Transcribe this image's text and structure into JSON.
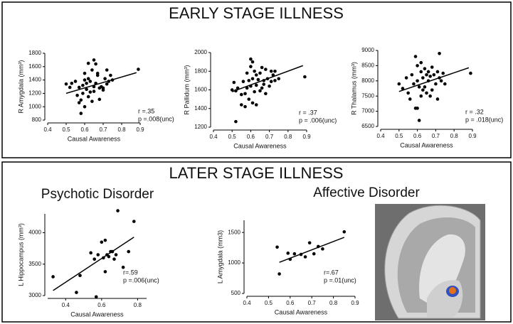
{
  "panels": [
    {
      "title": "EARLY STAGE ILLNESS"
    },
    {
      "title": "LATER STAGE ILLNESS"
    }
  ],
  "chart_data": [
    {
      "type": "scatter",
      "xlabel": "Causal Awareness",
      "ylabel": "R Amygdala (mm³)",
      "x": [
        0.5,
        0.52,
        0.53,
        0.55,
        0.56,
        0.57,
        0.57,
        0.58,
        0.58,
        0.59,
        0.59,
        0.6,
        0.6,
        0.6,
        0.61,
        0.61,
        0.62,
        0.62,
        0.62,
        0.63,
        0.63,
        0.64,
        0.64,
        0.65,
        0.65,
        0.65,
        0.66,
        0.66,
        0.67,
        0.67,
        0.68,
        0.68,
        0.69,
        0.7,
        0.7,
        0.71,
        0.72,
        0.72,
        0.73,
        0.74,
        0.75,
        0.89
      ],
      "values": [
        1340,
        1290,
        1350,
        1380,
        1170,
        1290,
        1060,
        1100,
        900,
        1320,
        1200,
        1500,
        1400,
        1000,
        1350,
        1260,
        1650,
        1420,
        1150,
        1380,
        1220,
        1080,
        1550,
        1700,
        1300,
        1230,
        1640,
        1350,
        1470,
        1500,
        1280,
        1110,
        1300,
        1280,
        1250,
        1420,
        1550,
        1340,
        1380,
        1470,
        1400,
        1560
      ],
      "trend_line": {
        "x": [
          0.5,
          0.88
        ],
        "y": [
          1200,
          1510
        ]
      },
      "annotations": [
        "r =.35",
        "p =.008(unc)"
      ],
      "color": "#000000",
      "xlim": [
        0.4,
        0.9
      ],
      "xticks": [
        0.4,
        0.5,
        0.6,
        0.7,
        0.8,
        0.9
      ],
      "ylim": [
        800,
        1800
      ],
      "yticks": [
        800,
        1000,
        1200,
        1400,
        1600,
        1800
      ]
    },
    {
      "type": "scatter",
      "xlabel": "Causal Awareness",
      "ylabel": "R Pallidum (mm³)",
      "x": [
        0.5,
        0.51,
        0.52,
        0.53,
        0.55,
        0.55,
        0.56,
        0.57,
        0.57,
        0.58,
        0.58,
        0.59,
        0.59,
        0.6,
        0.6,
        0.6,
        0.61,
        0.61,
        0.61,
        0.62,
        0.62,
        0.63,
        0.63,
        0.63,
        0.64,
        0.65,
        0.65,
        0.66,
        0.66,
        0.67,
        0.67,
        0.68,
        0.68,
        0.69,
        0.7,
        0.71,
        0.71,
        0.72,
        0.73,
        0.73,
        0.75,
        0.89,
        0.52
      ],
      "values": [
        1600,
        1680,
        1590,
        1620,
        1550,
        1440,
        1690,
        1560,
        1420,
        1780,
        1620,
        1700,
        1500,
        1930,
        1850,
        1640,
        1900,
        1720,
        1460,
        1800,
        1580,
        1760,
        1650,
        1440,
        1710,
        1780,
        1590,
        1840,
        1620,
        1700,
        1660,
        1820,
        1560,
        1720,
        1640,
        1800,
        1690,
        1760,
        1800,
        1700,
        1720,
        1740,
        1260
      ],
      "trend_line": {
        "x": [
          0.5,
          0.88
        ],
        "y": [
          1580,
          1860
        ]
      },
      "annotations": [
        "r = .37",
        "p = .006(unc)"
      ],
      "color": "#000000",
      "xlim": [
        0.4,
        0.9
      ],
      "xticks": [
        0.4,
        0.5,
        0.6,
        0.7,
        0.8,
        0.9
      ],
      "ylim": [
        1200,
        2000
      ],
      "yticks": [
        1200,
        1400,
        1600,
        1800,
        2000
      ]
    },
    {
      "type": "scatter",
      "xlabel": "Causal Awareness",
      "ylabel": "R Thalamus (mm³)",
      "x": [
        0.5,
        0.52,
        0.54,
        0.55,
        0.56,
        0.57,
        0.58,
        0.59,
        0.59,
        0.6,
        0.6,
        0.6,
        0.61,
        0.61,
        0.62,
        0.62,
        0.62,
        0.63,
        0.63,
        0.64,
        0.64,
        0.65,
        0.65,
        0.66,
        0.66,
        0.67,
        0.67,
        0.68,
        0.68,
        0.69,
        0.7,
        0.71,
        0.71,
        0.72,
        0.72,
        0.73,
        0.74,
        0.75,
        0.89
      ],
      "values": [
        7900,
        7750,
        8100,
        7600,
        7400,
        8200,
        7900,
        8800,
        7100,
        7100,
        8500,
        8000,
        7800,
        6700,
        8600,
        8300,
        7500,
        8100,
        7700,
        8400,
        7800,
        8200,
        7600,
        8300,
        8000,
        7500,
        8150,
        8450,
        7700,
        8200,
        7900,
        8300,
        7400,
        8100,
        8900,
        8000,
        8250,
        7900,
        8250
      ],
      "trend_line": {
        "x": [
          0.5,
          0.88
        ],
        "y": [
          7650,
          8430
        ]
      },
      "annotations": [
        "r = .32",
        "p = .018(unc)"
      ],
      "color": "#000000",
      "xlim": [
        0.4,
        0.9
      ],
      "xticks": [
        0.4,
        0.5,
        0.6,
        0.7,
        0.8,
        0.9
      ],
      "ylim": [
        6500,
        9000
      ],
      "yticks": [
        6500,
        7000,
        7500,
        8000,
        8500,
        9000
      ]
    },
    {
      "type": "scatter",
      "title": "Psychotic Disorder",
      "xlabel": "Causal Awareness",
      "ylabel": "L Hippocampus (mm³)",
      "x": [
        0.33,
        0.46,
        0.48,
        0.54,
        0.56,
        0.57,
        0.58,
        0.6,
        0.61,
        0.62,
        0.62,
        0.63,
        0.64,
        0.65,
        0.66,
        0.67,
        0.68,
        0.69,
        0.72,
        0.75,
        0.78
      ],
      "values": [
        3300,
        3050,
        3320,
        3680,
        3580,
        2980,
        3650,
        3850,
        3600,
        3880,
        3380,
        3650,
        3620,
        3700,
        3700,
        3580,
        3650,
        4350,
        3450,
        3700,
        4180
      ],
      "trend_line": {
        "x": [
          0.33,
          0.78
        ],
        "y": [
          3080,
          3930
        ]
      },
      "annotations": [
        "r=.59",
        "p =.006(unc)"
      ],
      "color": "#000000",
      "xlim": [
        0.3,
        0.85
      ],
      "xticks": [
        0.4,
        0.6,
        0.8
      ],
      "ylim": [
        3000,
        4300
      ],
      "yticks": [
        3000,
        3500,
        4000
      ]
    },
    {
      "type": "scatter",
      "title": "Affective Disorder",
      "xlabel": "Causal Awareness",
      "ylabel": "L Amygdala (mm3)",
      "x": [
        0.54,
        0.55,
        0.59,
        0.6,
        0.62,
        0.65,
        0.67,
        0.69,
        0.71,
        0.73,
        0.75,
        0.85
      ],
      "values": [
        1260,
        820,
        1160,
        1060,
        1150,
        1140,
        1100,
        1330,
        1150,
        1270,
        1230,
        1510
      ],
      "trend_line": {
        "x": [
          0.55,
          0.85
        ],
        "y": [
          1010,
          1420
        ]
      },
      "annotations": [
        "r=.67",
        "p =.01(unc)"
      ],
      "color": "#000000",
      "xlim": [
        0.4,
        0.9
      ],
      "xticks": [
        0.4,
        0.5,
        0.6,
        0.7,
        0.8,
        0.9
      ],
      "ylim": [
        500,
        1700
      ],
      "yticks": [
        500,
        1000,
        1500
      ]
    }
  ]
}
